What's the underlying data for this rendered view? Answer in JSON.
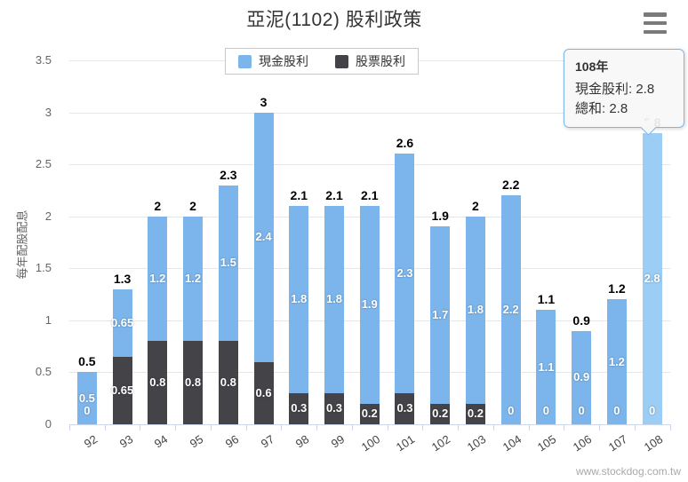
{
  "header": {
    "title": "亞泥(1102) 股利政策"
  },
  "menu": {
    "icon": "hamburger-menu-icon"
  },
  "legend": {
    "items": [
      {
        "label": "現金股利",
        "color": "#7cb5ec"
      },
      {
        "label": "股票股利",
        "color": "#434348"
      }
    ]
  },
  "y_axis": {
    "title": "每年配股配息",
    "ticks": [
      "0",
      "0.5",
      "1",
      "1.5",
      "2",
      "2.5",
      "3",
      "3.5"
    ]
  },
  "chart_data": {
    "type": "bar",
    "stacked": true,
    "title": "亞泥(1102) 股利政策",
    "ylabel": "每年配股配息",
    "ylim": [
      0,
      3.5
    ],
    "grid": true,
    "legend_position": "top",
    "categories": [
      "92",
      "93",
      "94",
      "95",
      "96",
      "97",
      "98",
      "99",
      "100",
      "101",
      "102",
      "103",
      "104",
      "105",
      "106",
      "107",
      "108"
    ],
    "series": [
      {
        "name": "現金股利",
        "color": "#7cb5ec",
        "values": [
          0.5,
          0.65,
          1.2,
          1.2,
          1.5,
          2.4,
          1.8,
          1.8,
          1.9,
          2.3,
          1.7,
          1.8,
          2.2,
          1.1,
          0.9,
          1.2,
          2.8
        ]
      },
      {
        "name": "股票股利",
        "color": "#434348",
        "values": [
          0,
          0.65,
          0.8,
          0.8,
          0.8,
          0.6,
          0.3,
          0.3,
          0.2,
          0.3,
          0.2,
          0.2,
          0,
          0,
          0,
          0,
          0
        ]
      }
    ],
    "totals": [
      "0.5",
      "1.3",
      "2",
      "2",
      "2.3",
      "3",
      "2.1",
      "2.1",
      "2.1",
      "2.6",
      "1.9",
      "2",
      "2.2",
      "1.1",
      "0.9",
      "1.2",
      "2.8"
    ],
    "highlighted_category": "108",
    "highlight_color": "#9bcdf5"
  },
  "tooltip": {
    "title": "108年",
    "lines": [
      "現金股利: 2.8",
      "總和: 2.8"
    ],
    "border_color": "#7cb5ec"
  },
  "watermark": "www.stockdog.com.tw"
}
